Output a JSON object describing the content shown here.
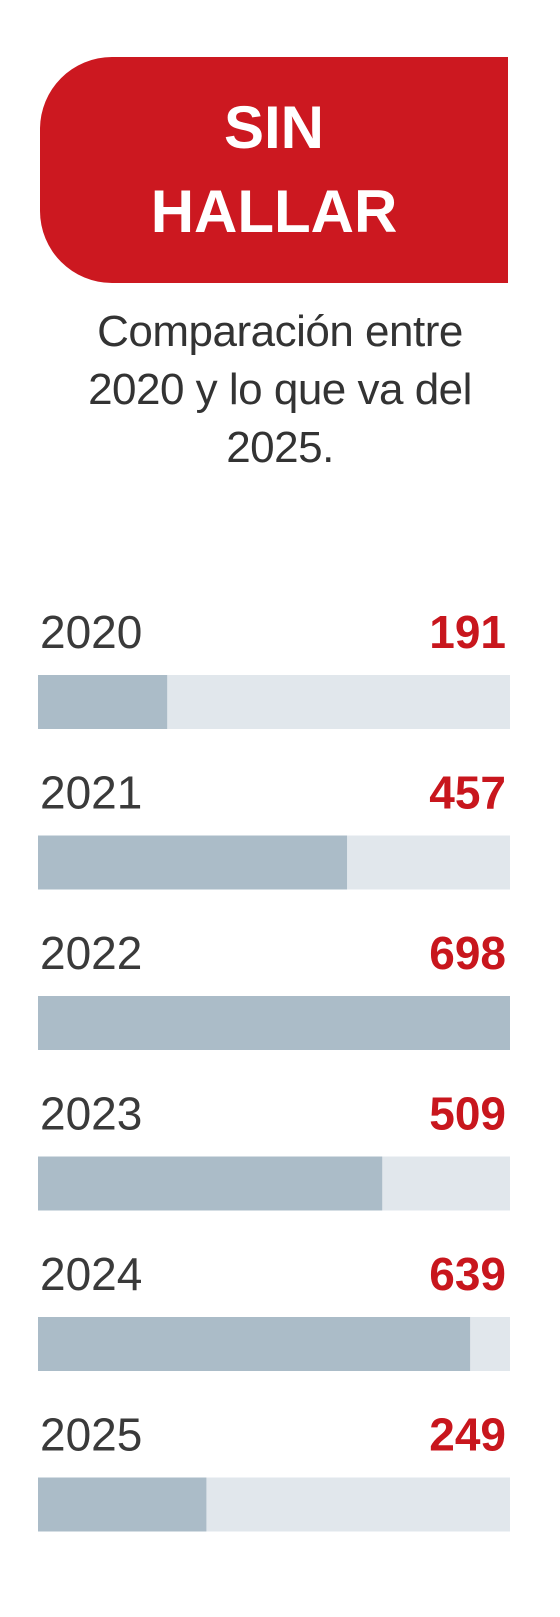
{
  "chart_data": {
    "type": "bar",
    "orientation": "horizontal",
    "title": "SIN HALLAR",
    "subtitle": "Comparación entre 2020 y lo que va del 2025.",
    "categories": [
      "2020",
      "2021",
      "2022",
      "2023",
      "2024",
      "2025"
    ],
    "values": [
      191,
      457,
      698,
      509,
      639,
      249
    ],
    "color": "#abbcc8",
    "track_color": "#e1e7ec",
    "value_color": "#c8161d"
  }
}
